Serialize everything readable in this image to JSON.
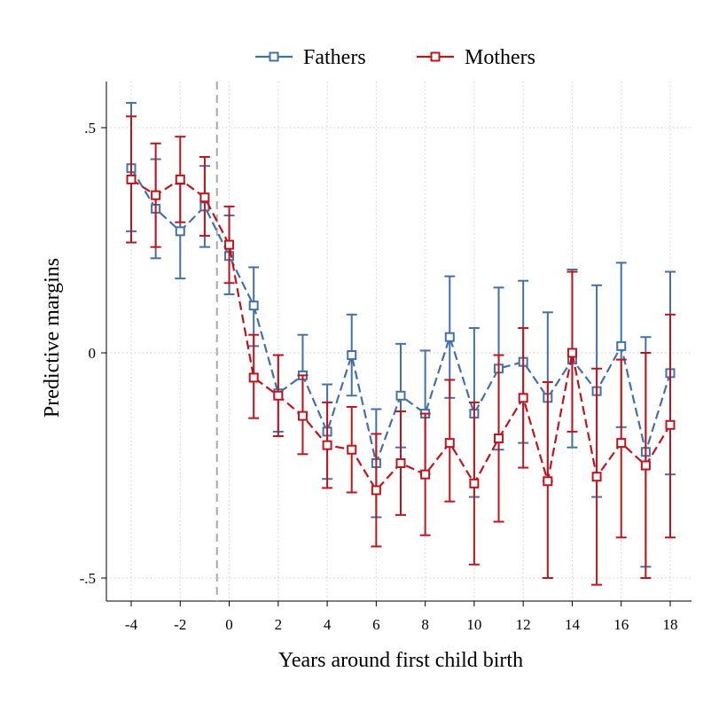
{
  "chart_data": {
    "type": "line",
    "title": "",
    "xlabel": "Years around first child birth",
    "ylabel": "Predictive margins",
    "xlim": [
      -4,
      18
    ],
    "ylim": [
      -0.5,
      0.5
    ],
    "x_ticks": [
      -4,
      -2,
      0,
      2,
      4,
      6,
      8,
      10,
      12,
      14,
      16,
      18
    ],
    "x_tick_labels": [
      "-4",
      "-2",
      "0",
      "2",
      "4",
      "6",
      "8",
      "10",
      "12",
      "14",
      "16",
      "18"
    ],
    "y_ticks": [
      -0.5,
      0,
      0.5
    ],
    "y_tick_labels": [
      "-.5",
      "0",
      ".5"
    ],
    "reference_line_x": -0.5,
    "grid": true,
    "legend_position": "top",
    "x": [
      -4,
      -3,
      -2,
      -1,
      0,
      1,
      2,
      3,
      4,
      5,
      6,
      7,
      8,
      9,
      10,
      11,
      12,
      13,
      14,
      15,
      16,
      17,
      18
    ],
    "series": [
      {
        "name": "Fathers",
        "color": "#4470a8",
        "marker": "hollow-square",
        "line_style": "dashed",
        "values": [
          0.41,
          0.32,
          0.27,
          0.325,
          0.215,
          0.105,
          -0.09,
          -0.05,
          -0.175,
          -0.005,
          -0.245,
          -0.095,
          -0.135,
          0.035,
          -0.135,
          -0.035,
          -0.02,
          -0.1,
          -0.015,
          -0.085,
          0.015,
          -0.22,
          -0.045
        ],
        "ci_lower": [
          0.27,
          0.21,
          0.165,
          0.235,
          0.13,
          0.015,
          -0.175,
          -0.135,
          -0.28,
          -0.095,
          -0.365,
          -0.21,
          -0.27,
          -0.1,
          -0.32,
          -0.215,
          -0.2,
          -0.285,
          -0.21,
          -0.32,
          -0.165,
          -0.475,
          -0.27
        ],
        "ci_upper": [
          0.555,
          0.43,
          0.375,
          0.415,
          0.305,
          0.19,
          -0.005,
          0.04,
          -0.07,
          0.085,
          -0.125,
          0.02,
          0.005,
          0.17,
          0.055,
          0.145,
          0.16,
          0.09,
          0.185,
          0.15,
          0.2,
          0.035,
          0.18
        ]
      },
      {
        "name": "Mothers",
        "color": "#c0141c",
        "marker": "hollow-square",
        "line_style": "dashed",
        "values": [
          0.385,
          0.35,
          0.385,
          0.345,
          0.24,
          -0.055,
          -0.095,
          -0.14,
          -0.205,
          -0.215,
          -0.305,
          -0.245,
          -0.27,
          -0.2,
          -0.29,
          -0.19,
          -0.1,
          -0.285,
          0.0,
          -0.275,
          -0.2,
          -0.25,
          -0.16
        ],
        "ci_lower": [
          0.245,
          0.235,
          0.29,
          0.26,
          0.155,
          -0.145,
          -0.185,
          -0.225,
          -0.3,
          -0.31,
          -0.43,
          -0.36,
          -0.405,
          -0.33,
          -0.47,
          -0.375,
          -0.255,
          -0.5,
          -0.175,
          -0.515,
          -0.41,
          -0.5,
          -0.41
        ],
        "ci_upper": [
          0.525,
          0.465,
          0.48,
          0.435,
          0.325,
          0.04,
          -0.005,
          -0.05,
          -0.11,
          -0.12,
          -0.18,
          -0.13,
          -0.135,
          -0.06,
          -0.11,
          -0.005,
          0.055,
          -0.065,
          0.18,
          -0.035,
          -0.015,
          0.0,
          0.085
        ]
      }
    ]
  }
}
